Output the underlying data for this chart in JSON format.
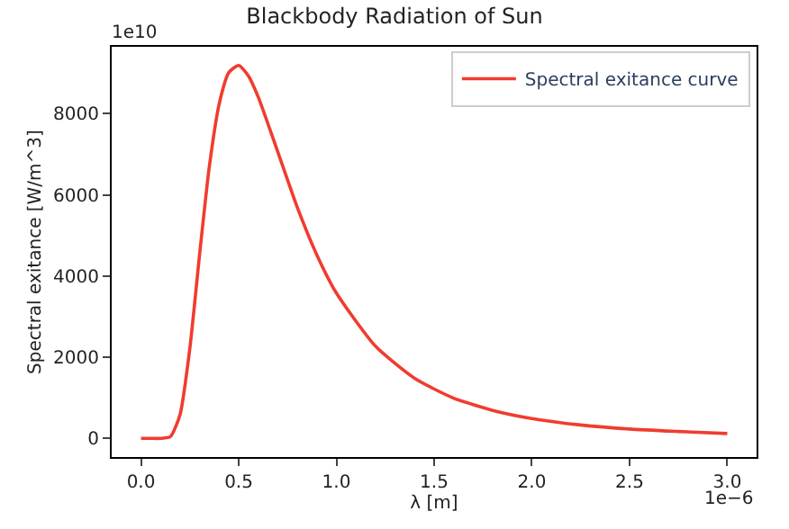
{
  "chart_data": {
    "type": "line",
    "title": "Blackbody Radiation of Sun",
    "xlabel": "λ [m]",
    "ylabel": "Spectral exitance [W/m^3]",
    "annotations": [
      "1e10",
      "1e−6"
    ],
    "series": [
      {
        "name": "Spectral exitance curve",
        "color": "#f03c2f",
        "x": [
          0,
          0.05,
          0.1,
          0.15,
          0.2,
          0.25,
          0.3,
          0.35,
          0.4,
          0.45,
          0.5,
          0.55,
          0.6,
          0.7,
          0.8,
          0.9,
          1.0,
          1.2,
          1.4,
          1.6,
          1.8,
          2.0,
          2.25,
          2.5,
          2.75,
          3.0
        ],
        "values": [
          0,
          0,
          0,
          40,
          590,
          2220,
          4540,
          6710,
          8240,
          9020,
          9190,
          8930,
          8410,
          7060,
          5690,
          4520,
          3580,
          2270,
          1480,
          990,
          690,
          490,
          330,
          230,
          170,
          120
        ]
      }
    ],
    "xlim": [
      -0.15,
      3.15
    ],
    "ylim": [
      -460,
      9650
    ],
    "xticks": [
      {
        "value": 0,
        "label": "0.0"
      },
      {
        "value": 0.5,
        "label": "0.5"
      },
      {
        "value": 1.0,
        "label": "1.0"
      },
      {
        "value": 1.5,
        "label": "1.5"
      },
      {
        "value": 2.0,
        "label": "2.0"
      },
      {
        "value": 2.5,
        "label": "2.5"
      },
      {
        "value": 3.0,
        "label": "3.0"
      }
    ],
    "yticks": [
      0,
      2000,
      4000,
      6000,
      8000
    ],
    "legend": "top right",
    "marker": "none",
    "line_style": "solid"
  }
}
